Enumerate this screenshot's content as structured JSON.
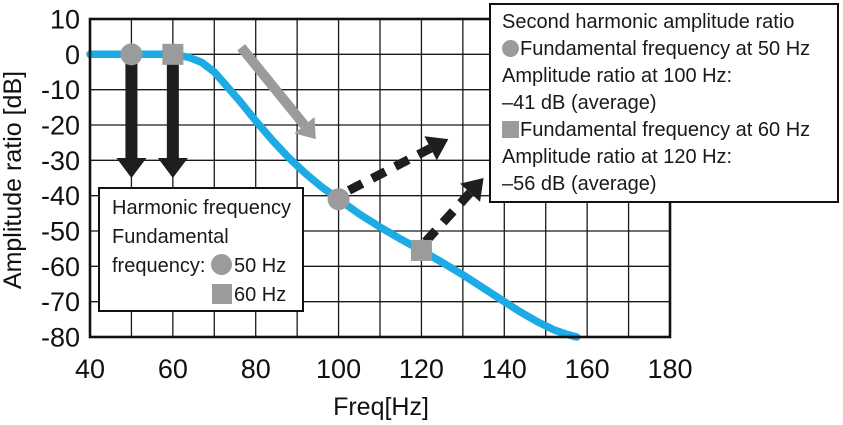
{
  "colors": {
    "curve": "#1CABE4",
    "marker_gray": "#9B9B9B",
    "arrow_black": "#1E1E1E",
    "grid": "#1a1a1a"
  },
  "chart_data": {
    "type": "line",
    "title": "",
    "xlabel": "Freq[Hz]",
    "ylabel": "Amplitude ratio [dB]",
    "xlim": [
      40,
      180
    ],
    "ylim": [
      -80,
      10
    ],
    "grid": {
      "x_step": 10,
      "y_step": 10,
      "on": true
    },
    "x_ticks": [
      40,
      60,
      80,
      100,
      120,
      140,
      160,
      180
    ],
    "y_ticks": [
      10,
      0,
      -10,
      -20,
      -30,
      -40,
      -50,
      -60,
      -70,
      -80
    ],
    "series": [
      {
        "name": "low-pass filter amplitude response",
        "color": "#1CABE4",
        "width": 7.5,
        "points": [
          [
            40,
            0
          ],
          [
            50,
            0
          ],
          [
            58,
            0
          ],
          [
            61,
            -0.2
          ],
          [
            64,
            -0.9
          ],
          [
            67,
            -2.3
          ],
          [
            70,
            -5
          ],
          [
            73,
            -9
          ],
          [
            76,
            -13
          ],
          [
            80,
            -18.8
          ],
          [
            84,
            -24.3
          ],
          [
            88,
            -29.3
          ],
          [
            92,
            -33.7
          ],
          [
            96,
            -37.6
          ],
          [
            100,
            -41
          ],
          [
            105,
            -45.2
          ],
          [
            110,
            -48.9
          ],
          [
            115,
            -52.3
          ],
          [
            120,
            -55.5
          ],
          [
            125,
            -58.9
          ],
          [
            130,
            -62.4
          ],
          [
            135,
            -66.2
          ],
          [
            140,
            -70
          ],
          [
            144,
            -73
          ],
          [
            148,
            -75.7
          ],
          [
            152,
            -78
          ],
          [
            155,
            -79.2
          ],
          [
            157.5,
            -80
          ]
        ]
      }
    ],
    "markers": [
      {
        "shape": "circle",
        "x": 50,
        "y": 0
      },
      {
        "shape": "square",
        "x": 60,
        "y": 0
      },
      {
        "shape": "circle",
        "x": 100,
        "y": -41
      },
      {
        "shape": "square",
        "x": 120,
        "y": -55.5
      }
    ],
    "arrows": [
      {
        "name": "drop-arrow-50hz",
        "from": [
          50,
          -2.5
        ],
        "to": [
          50,
          -35
        ],
        "color": "#1E1E1E",
        "width": 12,
        "dashed": false,
        "head_l": 20,
        "head_w": 30
      },
      {
        "name": "drop-arrow-60hz",
        "from": [
          60,
          -2.5
        ],
        "to": [
          60,
          -35
        ],
        "color": "#1E1E1E",
        "width": 12,
        "dashed": false,
        "head_l": 20,
        "head_w": 30
      },
      {
        "name": "rolloff-arrow",
        "from": [
          76.5,
          2
        ],
        "to": [
          94.5,
          -24
        ],
        "color": "#9B9B9B",
        "width": 10,
        "dashed": false,
        "head_l": 18,
        "head_w": 26
      },
      {
        "name": "harmonic-50hz-callout",
        "from": [
          102.5,
          -38.5
        ],
        "to": [
          126.5,
          -24
        ],
        "color": "#1E1E1E",
        "width": 9,
        "dashed": true,
        "head_l": 20,
        "head_w": 27
      },
      {
        "name": "harmonic-60hz-callout",
        "from": [
          121,
          -53
        ],
        "to": [
          135,
          -35
        ],
        "color": "#1E1E1E",
        "width": 9,
        "dashed": true,
        "head_l": 20,
        "head_w": 27
      }
    ]
  },
  "y_axis": {
    "title": "Amplitude ratio [dB]"
  },
  "x_axis": {
    "title": "Freq[Hz]"
  },
  "legend_box": {
    "lines": [
      {
        "text": "Second harmonic amplitude ratio"
      },
      {
        "marker": "circle",
        "text": "Fundamental frequency at 50 Hz"
      },
      {
        "text": "Amplitude ratio at 100 Hz:"
      },
      {
        "text": "–41 dB (average)"
      },
      {
        "marker": "square",
        "text": "Fundamental frequency at 60 Hz"
      },
      {
        "text": "Amplitude ratio at 120 Hz:"
      },
      {
        "text": "–56 dB (average)"
      }
    ]
  },
  "info_box": {
    "line1": "Harmonic frequency",
    "line2": "Fundamental",
    "line3_label": "frequency:",
    "line3_value": "50 Hz",
    "line4_value": "60 Hz"
  }
}
